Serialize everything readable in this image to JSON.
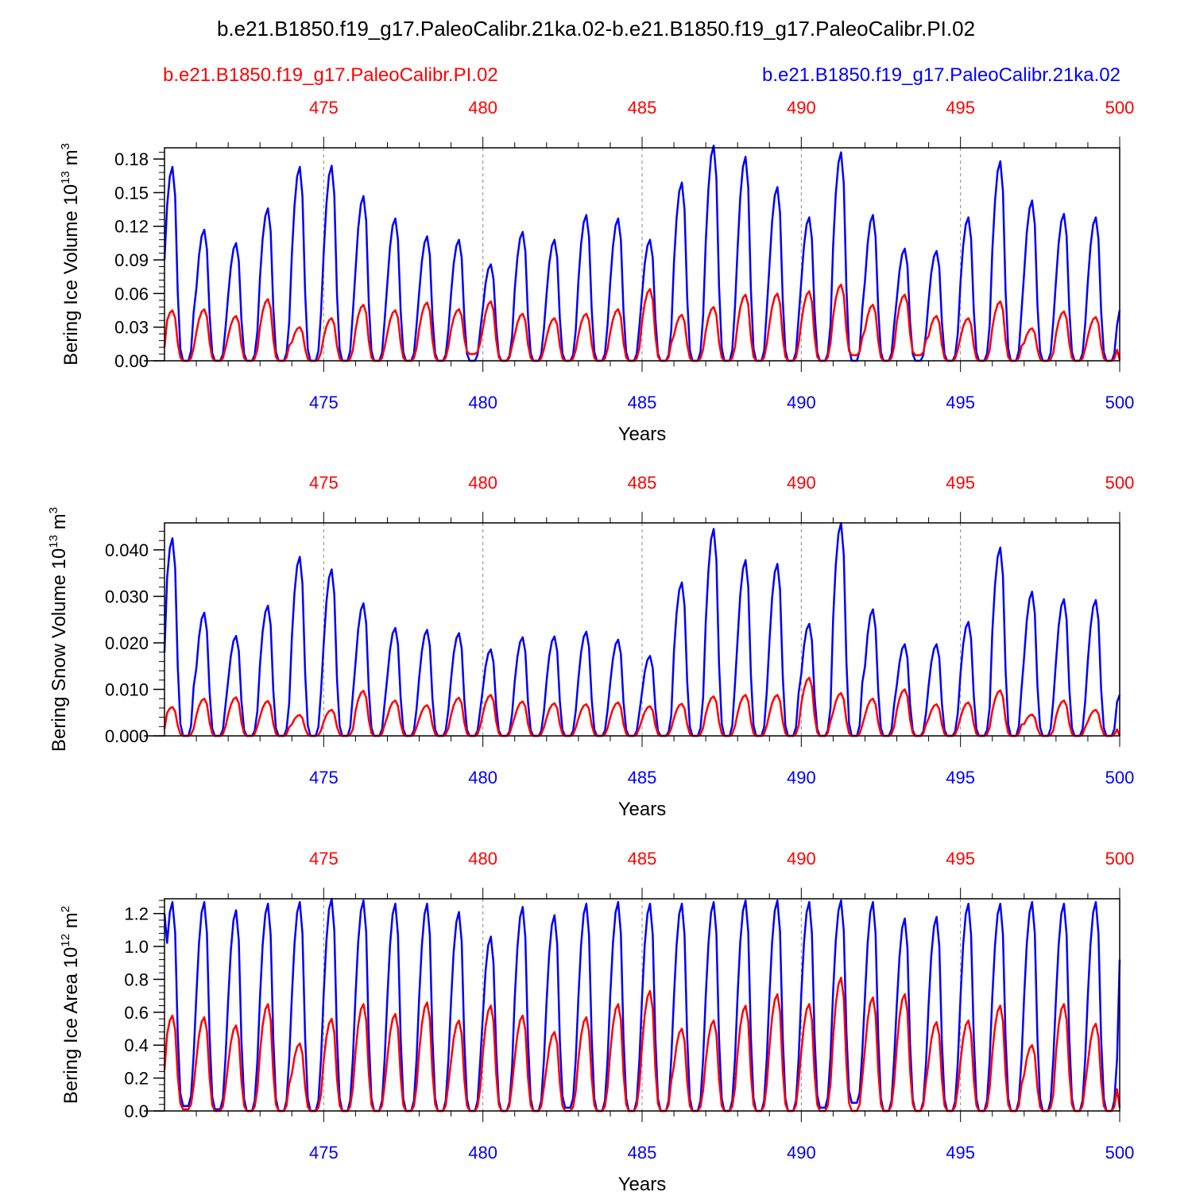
{
  "title": "b.e21.B1850.f19_g17.PaleoCalibr.21ka.02-b.e21.B1850.f19_g17.PaleoCalibr.PI.02",
  "colors": {
    "ref": "#ff0000",
    "exp": "#0000ff",
    "axis": "#000000",
    "grid": "#888888"
  },
  "legend": {
    "left": "b.e21.B1850.f19_g17.PaleoCalibr.PI.02",
    "right": "b.e21.B1850.f19_g17.PaleoCalibr.21ka.02"
  },
  "chart_data": [
    {
      "type": "line",
      "ylabel_main": "Bering Ice Volume 10",
      "ylabel_sup": "13",
      "ylabel_unit": " m",
      "ylabel_unit_sup": "3",
      "xlabel": "Years",
      "xlim": [
        470,
        500
      ],
      "ylim": [
        0,
        0.19
      ],
      "yticks": [
        "0.00",
        "0.03",
        "0.06",
        "0.09",
        "0.12",
        "0.15",
        "0.18"
      ],
      "xticks": [
        "475",
        "480",
        "485",
        "490",
        "495",
        "500"
      ],
      "series": [
        {
          "name": "b.e21.B1850.f19_g17.PaleoCalibr.21ka.02",
          "color": "#0000ff",
          "peaks": [
            0.173,
            0.117,
            0.105,
            0.136,
            0.173,
            0.174,
            0.147,
            0.127,
            0.111,
            0.108,
            0.086,
            0.115,
            0.108,
            0.13,
            0.127,
            0.108,
            0.159,
            0.192,
            0.182,
            0.155,
            0.128,
            0.186,
            0.13,
            0.1,
            0.098,
            0.128,
            0.178,
            0.143,
            0.131,
            0.128
          ],
          "mins": [
            0.0,
            0.0,
            0.0,
            0.0,
            0.0,
            0.0,
            0.0,
            0.0,
            0.0,
            0.0,
            0.0,
            0.0,
            0.0,
            0.0,
            0.0,
            0.0,
            0.0,
            0.0,
            0.0,
            0.0,
            0.0,
            0.0,
            0.0,
            0.0,
            0.0,
            0.0,
            0.0,
            0.0,
            0.0,
            0.0
          ],
          "start": 0.09,
          "end": 0.045
        },
        {
          "name": "b.e21.B1850.f19_g17.PaleoCalibr.PI.02",
          "color": "#ff0000",
          "peaks": [
            0.045,
            0.046,
            0.04,
            0.055,
            0.03,
            0.038,
            0.05,
            0.045,
            0.052,
            0.046,
            0.053,
            0.042,
            0.038,
            0.042,
            0.046,
            0.064,
            0.041,
            0.048,
            0.059,
            0.06,
            0.062,
            0.068,
            0.05,
            0.059,
            0.04,
            0.038,
            0.053,
            0.029,
            0.044,
            0.039
          ],
          "mins": [
            0.0,
            0.0,
            0.0,
            0.0,
            0.0,
            0.0,
            0.0,
            0.0,
            0.0,
            0.006,
            0.0,
            0.0,
            0.0,
            0.0,
            0.0,
            0.0,
            0.0,
            0.0,
            0.0,
            0.0,
            0.0,
            0.005,
            0.0,
            0.005,
            0.0,
            0.0,
            0.0,
            0.0,
            0.0,
            0.0
          ],
          "start": 0.012,
          "end": 0.001
        }
      ]
    },
    {
      "type": "line",
      "ylabel_main": "Bering Snow Volume 10",
      "ylabel_sup": "13",
      "ylabel_unit": " m",
      "ylabel_unit_sup": "3",
      "xlabel": "Years",
      "xlim": [
        470,
        500
      ],
      "ylim": [
        0,
        0.0458
      ],
      "yticks": [
        "0.000",
        "0.010",
        "0.020",
        "0.030",
        "0.040"
      ],
      "xticks": [
        "475",
        "480",
        "485",
        "490",
        "495",
        "500"
      ],
      "series": [
        {
          "name": "b.e21.B1850.f19_g17.PaleoCalibr.21ka.02",
          "color": "#0000ff",
          "peaks": [
            0.0425,
            0.0265,
            0.0215,
            0.028,
            0.0385,
            0.0358,
            0.0285,
            0.0232,
            0.0228,
            0.0221,
            0.0186,
            0.0212,
            0.0214,
            0.0224,
            0.0207,
            0.0172,
            0.033,
            0.0445,
            0.0378,
            0.037,
            0.0241,
            0.0458,
            0.0272,
            0.0197,
            0.0197,
            0.0245,
            0.0405,
            0.031,
            0.0294,
            0.0292
          ],
          "mins": [
            0,
            0,
            0,
            0,
            0,
            0,
            0,
            0,
            0,
            0,
            0,
            0,
            0,
            0,
            0,
            0,
            0,
            0,
            0,
            0,
            0,
            0,
            0,
            0,
            0,
            0,
            0,
            0,
            0,
            0
          ],
          "start": 0.018,
          "end": 0.0088
        },
        {
          "name": "b.e21.B1850.f19_g17.PaleoCalibr.PI.02",
          "color": "#ff0000",
          "peaks": [
            0.0062,
            0.008,
            0.0083,
            0.0075,
            0.0045,
            0.0056,
            0.0097,
            0.0076,
            0.0066,
            0.0082,
            0.0088,
            0.0074,
            0.007,
            0.0068,
            0.0072,
            0.0064,
            0.0069,
            0.0085,
            0.0088,
            0.0088,
            0.0125,
            0.0092,
            0.008,
            0.01,
            0.0068,
            0.0072,
            0.0098,
            0.0046,
            0.0076,
            0.0056
          ],
          "mins": [
            0,
            0,
            0,
            0,
            0,
            0,
            0,
            0,
            0,
            0,
            0,
            0,
            0,
            0,
            0,
            0,
            0,
            0,
            0,
            0,
            0,
            0,
            0,
            0,
            0,
            0,
            0,
            0,
            0,
            0
          ],
          "start": 0.0015,
          "end": 0.0
        }
      ]
    },
    {
      "type": "line",
      "ylabel_main": "Bering Ice Area 10",
      "ylabel_sup": "12",
      "ylabel_unit": " m",
      "ylabel_unit_sup": "2",
      "xlabel": "Years",
      "xlim": [
        470,
        500
      ],
      "ylim": [
        0,
        1.29
      ],
      "yticks": [
        "0.0",
        "0.2",
        "0.4",
        "0.6",
        "0.8",
        "1.0",
        "1.2"
      ],
      "xticks": [
        "475",
        "480",
        "485",
        "490",
        "495",
        "500"
      ],
      "series": [
        {
          "name": "b.e21.B1850.f19_g17.PaleoCalibr.21ka.02",
          "color": "#0000ff",
          "peaks": [
            1.27,
            1.27,
            1.22,
            1.26,
            1.27,
            1.29,
            1.28,
            1.26,
            1.26,
            1.21,
            1.06,
            1.24,
            1.19,
            1.26,
            1.27,
            1.26,
            1.26,
            1.27,
            1.28,
            1.28,
            1.27,
            1.28,
            1.27,
            1.17,
            1.18,
            1.26,
            1.26,
            1.27,
            1.26,
            1.27
          ],
          "mins": [
            0.03,
            0.01,
            0.0,
            0.0,
            0.0,
            0.0,
            0.0,
            0.0,
            0.0,
            0.0,
            0.0,
            0.0,
            0.02,
            0.0,
            0.0,
            0.0,
            0.0,
            0.0,
            0.0,
            0.0,
            0.02,
            0.05,
            0.0,
            0.0,
            0.0,
            0.0,
            0.0,
            0.0,
            0.0,
            0.0
          ],
          "start": 1.2,
          "end": 0.92
        },
        {
          "name": "b.e21.B1850.f19_g17.PaleoCalibr.PI.02",
          "color": "#ff0000",
          "peaks": [
            0.58,
            0.57,
            0.52,
            0.65,
            0.41,
            0.56,
            0.65,
            0.59,
            0.66,
            0.55,
            0.64,
            0.58,
            0.48,
            0.57,
            0.65,
            0.73,
            0.5,
            0.55,
            0.64,
            0.71,
            0.65,
            0.81,
            0.69,
            0.71,
            0.54,
            0.55,
            0.64,
            0.4,
            0.65,
            0.53
          ],
          "mins": [
            0.01,
            0.0,
            0.0,
            0.0,
            0.0,
            0.0,
            0.0,
            0.0,
            0.0,
            0.0,
            0.0,
            0.0,
            0.0,
            0.0,
            0.0,
            0.0,
            0.0,
            0.0,
            0.0,
            0.0,
            0.0,
            0.0,
            0.0,
            0.0,
            0.0,
            0.0,
            0.0,
            0.0,
            0.0,
            0.0
          ],
          "start": 0.25,
          "end": 0.02
        }
      ]
    }
  ]
}
